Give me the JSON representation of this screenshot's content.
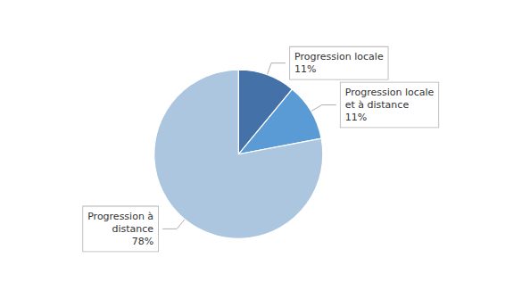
{
  "chart_data": {
    "type": "pie",
    "categories": [
      "Progression locale",
      "Progression locale\net à distance",
      "Progression à\ndistance"
    ],
    "values": [
      11,
      11,
      78
    ],
    "value_labels": [
      "11%",
      "11%",
      "78%"
    ],
    "colors": [
      "#4472a8",
      "#5b9bd5",
      "#adc6e0"
    ]
  }
}
